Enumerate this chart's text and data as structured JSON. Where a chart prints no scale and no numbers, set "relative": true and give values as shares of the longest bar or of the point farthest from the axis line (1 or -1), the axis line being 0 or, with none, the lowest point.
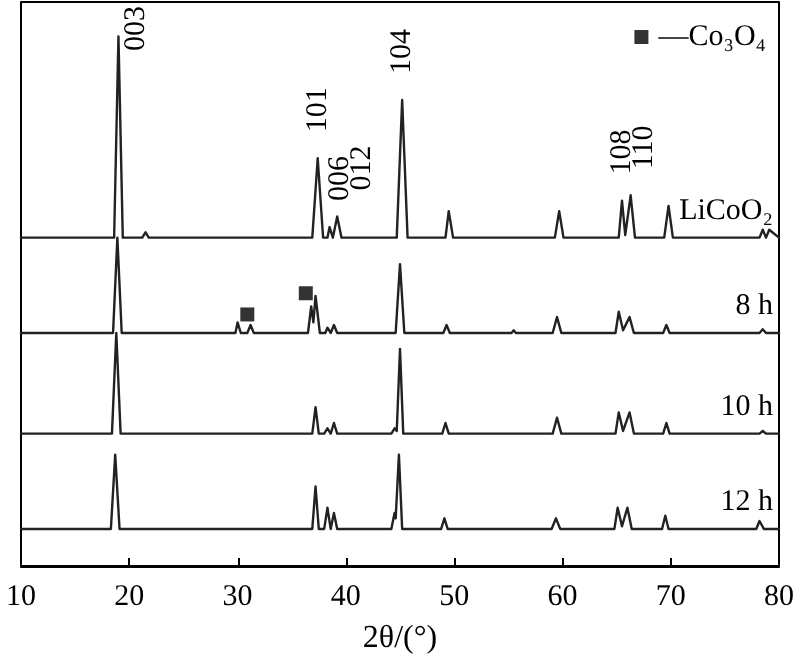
{
  "chart_data": {
    "type": "line",
    "relative": true,
    "xlabel": "2θ/(°)",
    "xlim": [
      10,
      80
    ],
    "xticks": [
      10,
      20,
      30,
      40,
      50,
      60,
      70,
      80
    ],
    "grid": false,
    "legend": "top right",
    "series": [
      {
        "name": "LiCoO₂",
        "color": "#222222",
        "x": [
          10,
          18.6,
          19,
          19.4,
          21.2,
          21.5,
          21.8,
          36.9,
          37.4,
          37.9,
          38.3,
          38.5,
          38.8,
          39.2,
          39.6,
          44.7,
          45.2,
          45.7,
          49.2,
          49.5,
          49.9,
          59.3,
          59.7,
          60.1,
          65.2,
          65.5,
          65.8,
          66.3,
          66.7,
          69.4,
          69.8,
          70.2,
          78.2,
          78.5,
          78.8,
          79.1,
          80
        ],
        "values": [
          0.62,
          0.62,
          1,
          0.62,
          0.62,
          0.63,
          0.62,
          0.62,
          0.77,
          0.62,
          0.62,
          0.64,
          0.62,
          0.66,
          0.62,
          0.62,
          0.88,
          0.62,
          0.62,
          0.67,
          0.62,
          0.62,
          0.67,
          0.62,
          0.62,
          0.69,
          0.625,
          0.7,
          0.62,
          0.62,
          0.68,
          0.62,
          0.62,
          0.635,
          0.62,
          0.635,
          0.62
        ]
      },
      {
        "name": "8 h",
        "color": "#222222",
        "x": [
          10,
          18.5,
          18.9,
          19.3,
          29.8,
          30,
          30.3,
          30.9,
          31.2,
          31.5,
          36.5,
          36.8,
          37,
          37.2,
          37.6,
          38.1,
          38.3,
          38.6,
          38.9,
          39.2,
          44.6,
          45,
          45.4,
          49,
          49.3,
          49.6,
          55.3,
          55.5,
          55.7,
          59.1,
          59.5,
          59.9,
          64.9,
          65.2,
          65.6,
          66.2,
          66.6,
          69.3,
          69.6,
          69.9,
          78.2,
          78.5,
          78.8,
          80
        ],
        "values": [
          0.44,
          0.44,
          0.62,
          0.44,
          0.44,
          0.46,
          0.44,
          0.44,
          0.455,
          0.44,
          0.44,
          0.49,
          0.46,
          0.51,
          0.44,
          0.44,
          0.45,
          0.44,
          0.455,
          0.44,
          0.44,
          0.57,
          0.44,
          0.44,
          0.455,
          0.44,
          0.44,
          0.445,
          0.44,
          0.44,
          0.47,
          0.44,
          0.44,
          0.48,
          0.445,
          0.47,
          0.44,
          0.44,
          0.455,
          0.44,
          0.44,
          0.447,
          0.44,
          0.44
        ]
      },
      {
        "name": "10 h",
        "color": "#222222",
        "x": [
          10,
          18.4,
          18.8,
          19.2,
          36.9,
          37.2,
          37.5,
          38,
          38.3,
          38.6,
          38.9,
          39.2,
          44.2,
          44.5,
          44.7,
          45,
          45.3,
          48.9,
          49.2,
          49.5,
          59.1,
          59.5,
          59.9,
          64.9,
          65.2,
          65.6,
          66.2,
          66.6,
          69.3,
          69.6,
          69.9,
          78.2,
          78.5,
          78.8,
          80
        ],
        "values": [
          0.25,
          0.25,
          0.44,
          0.25,
          0.25,
          0.3,
          0.25,
          0.25,
          0.26,
          0.25,
          0.27,
          0.25,
          0.25,
          0.26,
          0.255,
          0.41,
          0.25,
          0.25,
          0.27,
          0.25,
          0.25,
          0.28,
          0.25,
          0.25,
          0.29,
          0.255,
          0.29,
          0.25,
          0.25,
          0.27,
          0.25,
          0.25,
          0.255,
          0.25,
          0.25
        ]
      },
      {
        "name": "12 h",
        "color": "#222222",
        "x": [
          10,
          18.3,
          18.7,
          19.1,
          36.9,
          37.2,
          37.5,
          38,
          38.3,
          38.6,
          38.9,
          39.2,
          44.2,
          44.5,
          44.6,
          44.9,
          45.2,
          48.8,
          49.1,
          49.4,
          59,
          59.4,
          59.8,
          64.8,
          65.1,
          65.5,
          66,
          66.4,
          69.2,
          69.5,
          69.8,
          77.9,
          78.2,
          78.6,
          80
        ],
        "values": [
          0.07,
          0.07,
          0.21,
          0.07,
          0.07,
          0.15,
          0.07,
          0.07,
          0.11,
          0.07,
          0.1,
          0.07,
          0.07,
          0.1,
          0.09,
          0.21,
          0.07,
          0.07,
          0.09,
          0.07,
          0.07,
          0.09,
          0.07,
          0.07,
          0.11,
          0.075,
          0.11,
          0.07,
          0.07,
          0.095,
          0.07,
          0.07,
          0.085,
          0.07,
          0.07
        ]
      },
      {
        "name": "—Co₃O₄",
        "type": "scatter",
        "marker": "square",
        "color": "#000000",
        "x": [
          30.9,
          36.3
        ],
        "values": [
          0.475,
          0.515
        ]
      }
    ],
    "annotations": [
      {
        "text": "003",
        "x": 19,
        "y": 1
      },
      {
        "text": "101",
        "x": 37.4,
        "y": 0.77
      },
      {
        "text": "006",
        "x": 38.5,
        "y": 0.64
      },
      {
        "text": "012",
        "x": 39.2,
        "y": 0.66
      },
      {
        "text": "104",
        "x": 45.2,
        "y": 0.88
      },
      {
        "text": "108",
        "x": 65.5,
        "y": 0.69
      },
      {
        "text": "110",
        "x": 66.3,
        "y": 0.7
      }
    ]
  }
}
